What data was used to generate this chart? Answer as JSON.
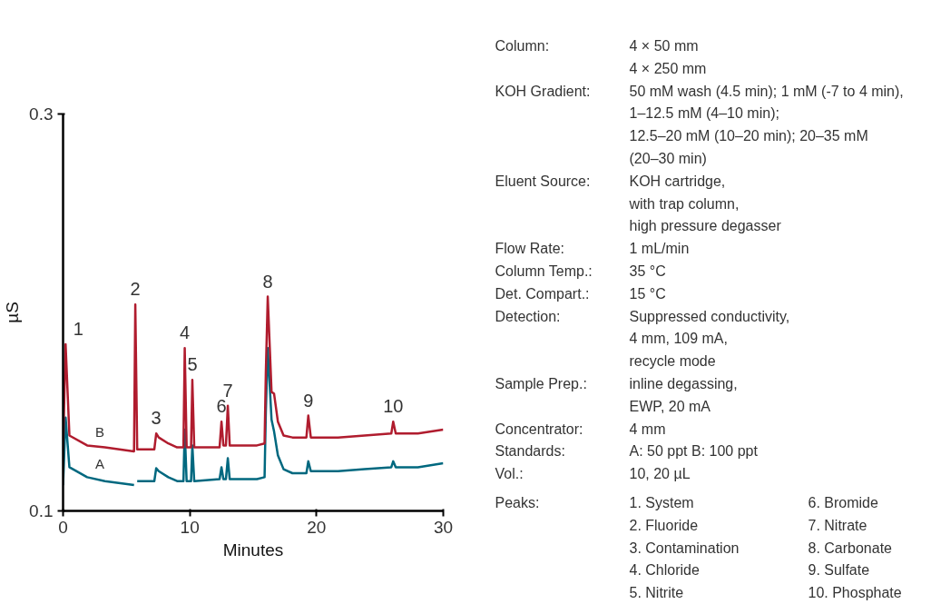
{
  "chart_data": [
    {
      "type": "line",
      "xlabel": "Minutes",
      "ylabel": "µS",
      "xlim": [
        0,
        30
      ],
      "xticks": [
        0,
        10,
        20,
        30
      ],
      "ylim": [
        0.1,
        0.3
      ],
      "yticks": [
        0.1,
        0.3
      ],
      "x": [
        0,
        0.2,
        0.5,
        1.9,
        3.3,
        5.6,
        5.7,
        5.85,
        6.6,
        7.2,
        7.35,
        7.55,
        8.3,
        9.0,
        9.5,
        9.6,
        9.75,
        10.1,
        10.2,
        10.35,
        12.35,
        12.5,
        12.65,
        12.85,
        13.0,
        13.15,
        15.3,
        15.9,
        16.0,
        16.15,
        16.45,
        16.65,
        16.95,
        17.4,
        18.1,
        19.2,
        19.35,
        19.55,
        21.7,
        23.8,
        25.9,
        26.05,
        26.25,
        28,
        30
      ],
      "series": [
        {
          "name": "A",
          "color": "#00687f",
          "values": [
            0.113,
            0.147,
            0.122,
            0.117,
            0.115,
            0.113,
            null,
            0.115,
            0.115,
            0.115,
            0.1215,
            0.12,
            0.117,
            0.115,
            0.115,
            0.141,
            0.115,
            0.115,
            0.133,
            0.115,
            0.116,
            0.122,
            0.116,
            0.116,
            0.1265,
            0.116,
            0.116,
            0.117,
            0.15,
            0.182,
            0.146,
            0.14,
            0.128,
            0.121,
            0.119,
            0.119,
            0.125,
            0.12,
            0.12,
            0.121,
            0.122,
            0.125,
            0.122,
            0.122,
            0.124
          ]
        },
        {
          "name": "B",
          "color": "#b01c2e",
          "values": [
            0.131,
            0.184,
            0.138,
            0.133,
            0.132,
            0.13,
            0.204,
            0.131,
            0.131,
            0.131,
            0.139,
            0.137,
            0.134,
            0.132,
            0.132,
            0.182,
            0.132,
            0.132,
            0.166,
            0.132,
            0.132,
            0.145,
            0.133,
            0.133,
            0.153,
            0.133,
            0.133,
            0.134,
            0.17,
            0.208,
            0.16,
            0.159,
            0.145,
            0.138,
            0.137,
            0.137,
            0.148,
            0.137,
            0.137,
            0.138,
            0.139,
            0.145,
            0.139,
            0.139,
            0.141
          ]
        }
      ],
      "annotations": [
        {
          "text": "1",
          "x": 0.2,
          "y": 0.184
        },
        {
          "text": "2",
          "x": 5.7,
          "y": 0.204
        },
        {
          "text": "3",
          "x": 7.35,
          "y": 0.139
        },
        {
          "text": "4",
          "x": 9.6,
          "y": 0.182
        },
        {
          "text": "5",
          "x": 10.2,
          "y": 0.166
        },
        {
          "text": "6",
          "x": 12.5,
          "y": 0.145
        },
        {
          "text": "7",
          "x": 13.0,
          "y": 0.153
        },
        {
          "text": "8",
          "x": 16.15,
          "y": 0.208
        },
        {
          "text": "9",
          "x": 19.35,
          "y": 0.148
        },
        {
          "text": "10",
          "x": 26.05,
          "y": 0.145
        }
      ]
    },
    {
      "type": "other",
      "annotations": [
        "Column:",
        "4 × 50 mm\n4 × 250 mm",
        "KOH Gradient:",
        "50 mM wash (4.5 min); 1 mM (-7 to 4 min),\n1–12.5 mM (4–10 min);\n12.5–20 mM (10–20 min); 20–35 mM\n(20–30 min)",
        "Eluent Source:",
        "KOH cartridge,\nwith trap column,\nhigh pressure degasser",
        "Flow Rate:",
        "1 mL/min",
        "Column Temp.:",
        "35 °C",
        "Det. Compart.:",
        "15 °C",
        "Detection:",
        "Suppressed conductivity,\n4 mm, 109 mA,\nrecycle mode",
        "Sample Prep.:",
        "inline degassing,\nEWP, 20 mA",
        "Concentrator:",
        "4 mm",
        "Standards:",
        "A: 50 ppt  B: 100 ppt",
        "Vol.:",
        "10, 20 µL"
      ]
    },
    {
      "type": "other",
      "annotations": [
        "Peaks:",
        "1. System\n2. Fluoride\n3. Contamination\n4. Chloride\n5. Nitrite",
        "6. Bromide\n7. Nitrate\n8. Carbonate\n9. Sulfate\n10. Phosphate"
      ]
    }
  ]
}
